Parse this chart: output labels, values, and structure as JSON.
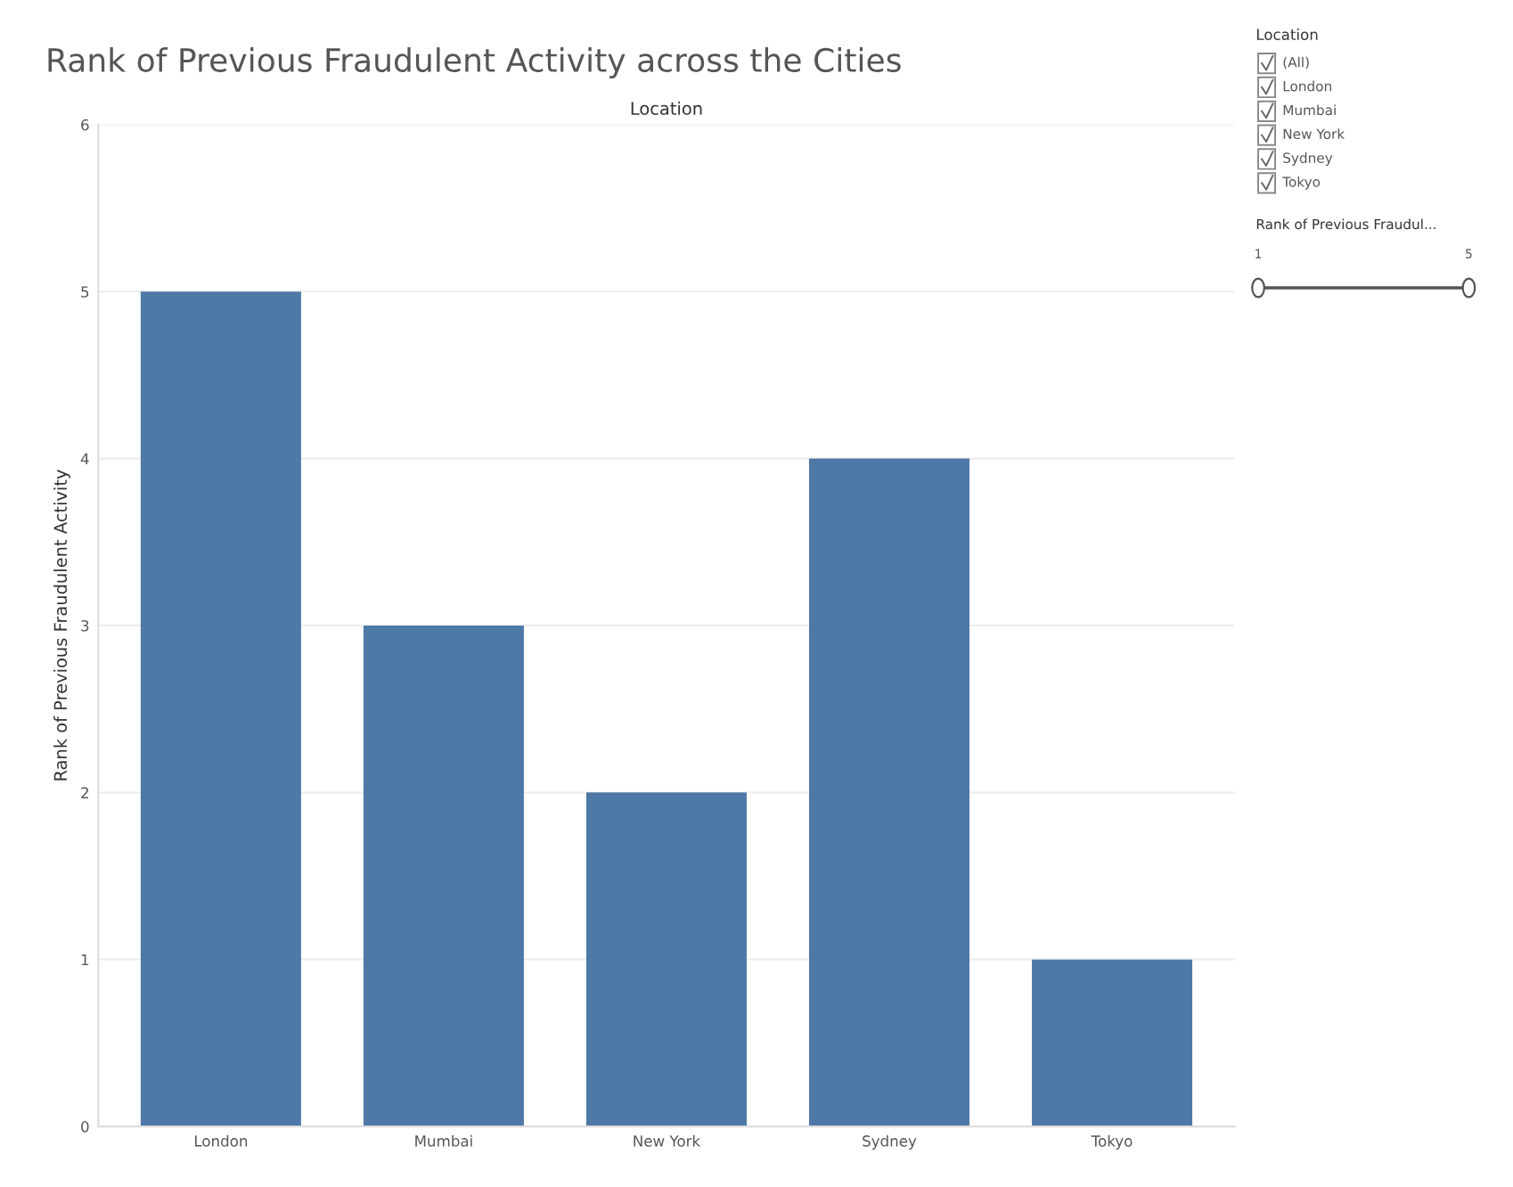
{
  "chart_data": [
    {
      "type": "bar",
      "title": "Rank of Previous Fraudulent Activity across the Cities",
      "xlabel": "Location",
      "ylabel": "Rank of Previous Fraudulent Activity",
      "categories": [
        "London",
        "Mumbai",
        "New York",
        "Sydney",
        "Tokyo"
      ],
      "values": [
        5,
        3,
        2,
        4,
        1
      ],
      "color": "#4e79a7",
      "ylim": [
        0,
        6
      ],
      "yticks": [
        0,
        1,
        2,
        3,
        4,
        5,
        6
      ],
      "grid": "y"
    },
    {
      "type": "other",
      "title": "Location",
      "annotations": [
        "(All)",
        "London",
        "Mumbai",
        "New York",
        "Sydney",
        "Tokyo",
        "Rank of Previous Fraudul...",
        "1",
        "5"
      ]
    }
  ]
}
